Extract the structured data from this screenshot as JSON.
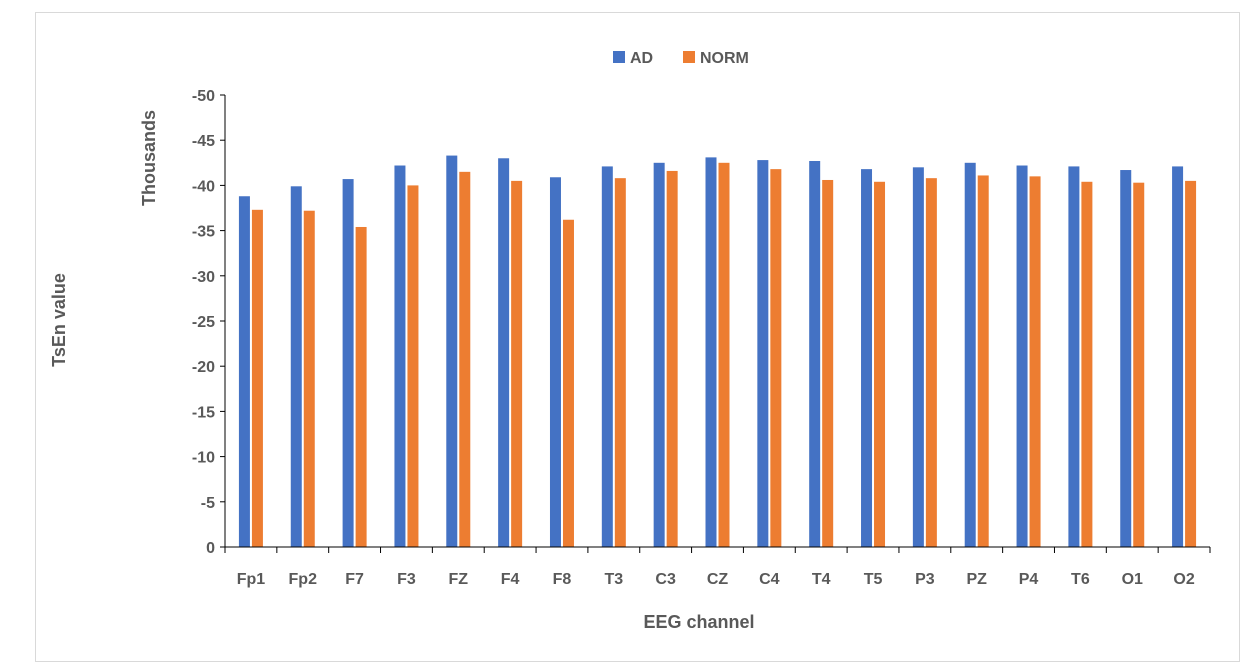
{
  "chart_data": {
    "type": "bar",
    "title": "",
    "xlabel": "EEG channel",
    "ylabel": "Thousands",
    "outer_label": "TsEn value",
    "y_display_scale": "negative thousands (axis labels 0 to -50)",
    "ylim": [
      0,
      -50
    ],
    "yticks": [
      0,
      -5,
      -10,
      -15,
      -20,
      -25,
      -30,
      -35,
      -40,
      -45,
      -50
    ],
    "grid": "none",
    "legend_position": "top",
    "categories": [
      "Fp1",
      "Fp2",
      "F7",
      "F3",
      "FZ",
      "F4",
      "F8",
      "T3",
      "C3",
      "CZ",
      "C4",
      "T4",
      "T5",
      "P3",
      "PZ",
      "P4",
      "T6",
      "O1",
      "O2"
    ],
    "series": [
      {
        "name": "AD",
        "color": "#4472C4",
        "values": [
          -38.8,
          -39.9,
          -40.7,
          -42.2,
          -43.3,
          -43.0,
          -40.9,
          -42.1,
          -42.5,
          -43.1,
          -42.8,
          -42.7,
          -41.8,
          -42.0,
          -42.5,
          -42.2,
          -42.1,
          -41.7,
          -42.1
        ]
      },
      {
        "name": "NORM",
        "color": "#ED7D31",
        "values": [
          -37.3,
          -37.2,
          -35.4,
          -40.0,
          -41.5,
          -40.5,
          -36.2,
          -40.8,
          -41.6,
          -42.5,
          -41.8,
          -40.6,
          -40.4,
          -40.8,
          -41.1,
          -41.0,
          -40.4,
          -40.3,
          -40.5
        ]
      }
    ]
  }
}
